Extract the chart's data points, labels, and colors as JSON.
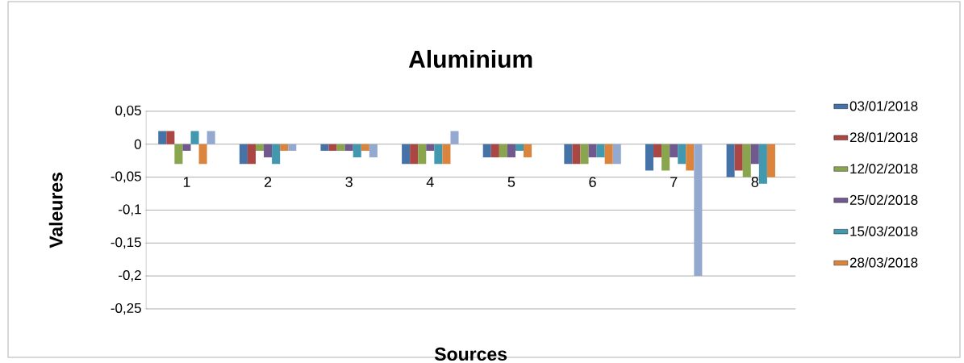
{
  "chart_data": {
    "type": "bar",
    "title": "Aluminium",
    "xlabel": "Sources",
    "ylabel": "Valeures",
    "categories": [
      "1",
      "2",
      "3",
      "4",
      "5",
      "6",
      "7",
      "8"
    ],
    "series": [
      {
        "name": "03/01/2018",
        "color": "#4572a7",
        "values": [
          0.02,
          -0.03,
          -0.01,
          -0.03,
          -0.02,
          -0.03,
          -0.04,
          -0.05
        ]
      },
      {
        "name": "28/01/2018",
        "color": "#aa4643",
        "values": [
          0.02,
          -0.03,
          -0.01,
          -0.03,
          -0.02,
          -0.03,
          -0.02,
          -0.04
        ]
      },
      {
        "name": "12/02/2018",
        "color": "#89a54e",
        "values": [
          -0.03,
          -0.01,
          -0.01,
          -0.03,
          -0.02,
          -0.03,
          -0.04,
          -0.05
        ]
      },
      {
        "name": "25/02/2018",
        "color": "#71588f",
        "values": [
          -0.01,
          -0.02,
          -0.01,
          -0.01,
          -0.02,
          -0.02,
          -0.02,
          -0.03
        ]
      },
      {
        "name": "15/03/2018",
        "color": "#4198af",
        "values": [
          0.02,
          -0.03,
          -0.02,
          -0.03,
          -0.01,
          -0.02,
          -0.03,
          -0.06
        ]
      },
      {
        "name": "28/03/2018",
        "color": "#db843d",
        "values": [
          -0.03,
          -0.01,
          -0.01,
          -0.03,
          -0.02,
          -0.03,
          -0.04,
          -0.05
        ]
      },
      {
        "color": "#93a9cf",
        "values": [
          0.02,
          -0.01,
          -0.02,
          0.02,
          0,
          -0.03,
          -0.2,
          0
        ]
      }
    ],
    "ylim": [
      -0.25,
      0.05
    ],
    "yticks": [
      {
        "value": -0.25,
        "label": "-0,25"
      },
      {
        "value": -0.2,
        "label": "-0,2"
      },
      {
        "value": -0.15,
        "label": "-0,15"
      },
      {
        "value": -0.1,
        "label": "-0,1"
      },
      {
        "value": -0.05,
        "label": "-0,05"
      },
      0,
      {
        "value": 0.05,
        "label": "0,05"
      }
    ],
    "grid": "y",
    "legend": "right"
  }
}
